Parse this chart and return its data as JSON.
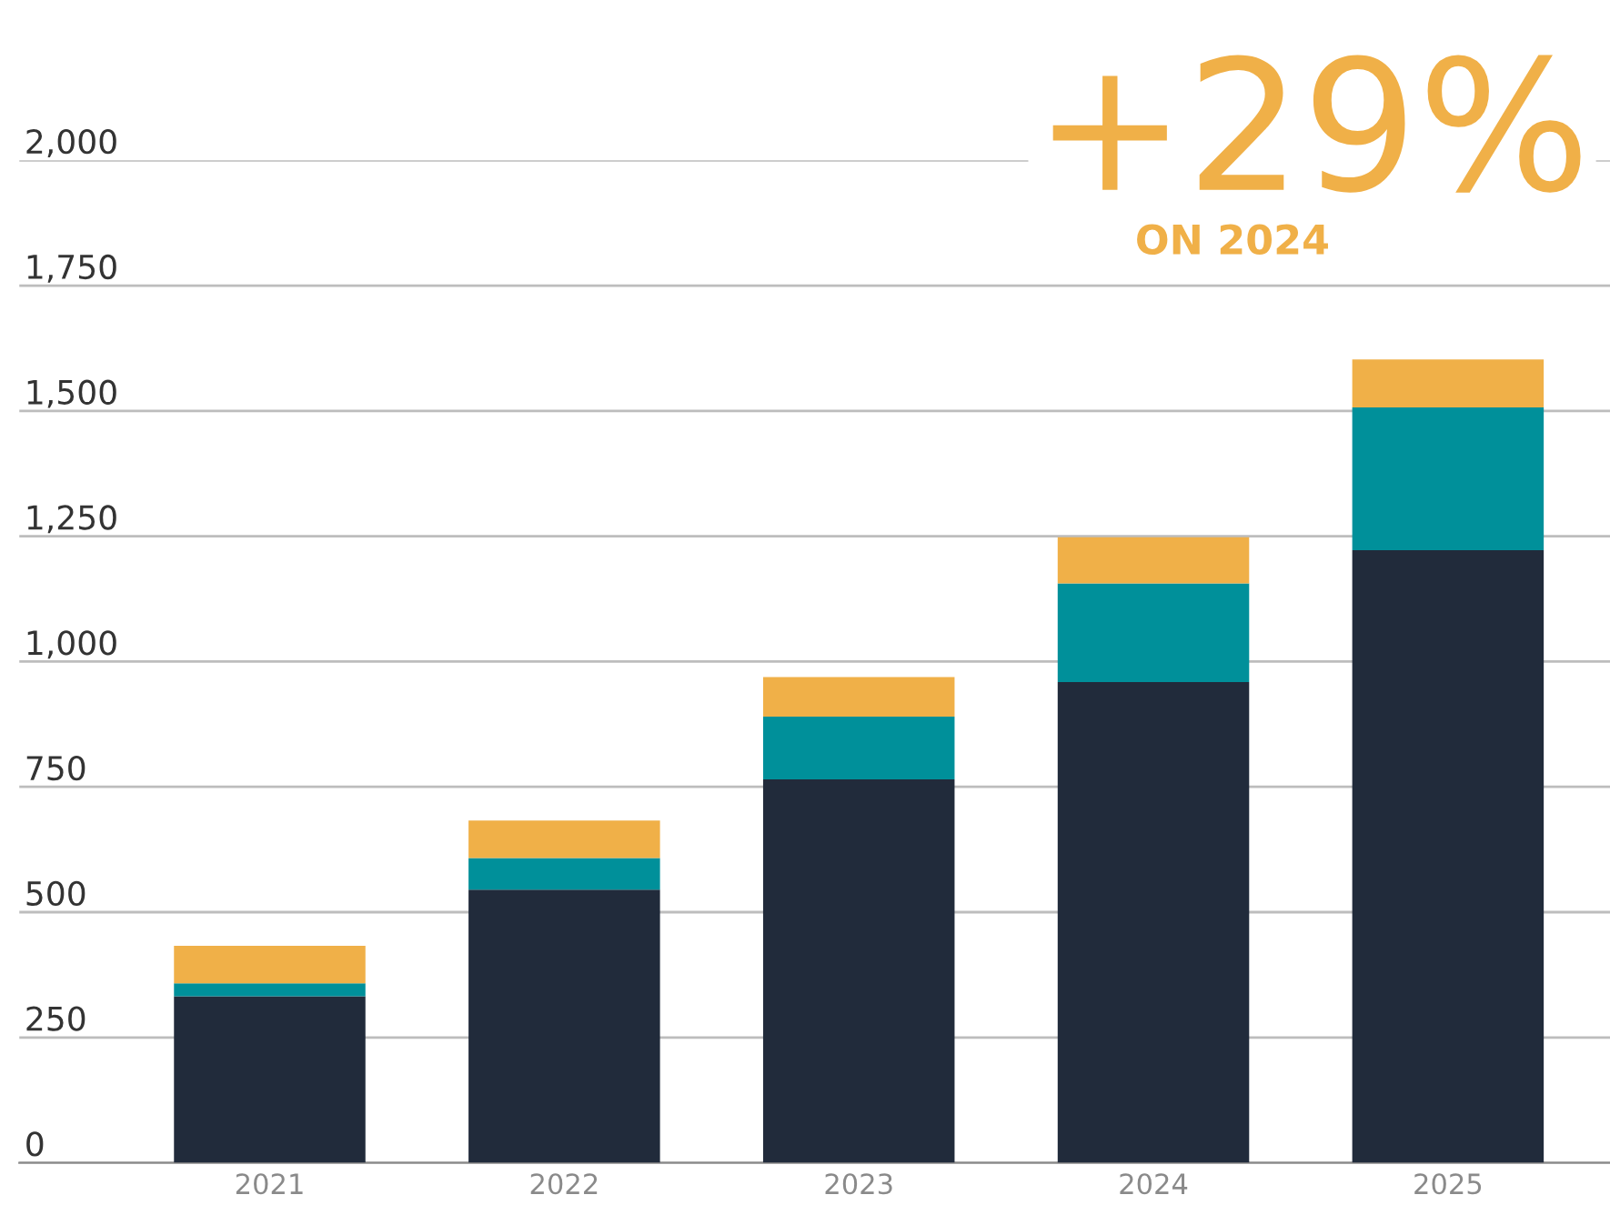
{
  "chart_data": {
    "type": "bar",
    "stacked": true,
    "categories": [
      "2021",
      "2022",
      "2023",
      "2024",
      "2025"
    ],
    "series": [
      {
        "color": "#212b3b",
        "values": [
          332,
          545,
          765,
          959,
          1222
        ]
      },
      {
        "color": "#00909a",
        "values": [
          26,
          63,
          125,
          197,
          285
        ]
      },
      {
        "color": "#f0b048",
        "values": [
          75,
          75,
          79,
          92,
          96
        ]
      }
    ],
    "ylim": [
      0,
      2000
    ],
    "yticks": [
      0,
      {
        "value": 250,
        "label": "250"
      },
      {
        "value": 500,
        "label": "500"
      },
      {
        "value": 750,
        "label": "750"
      },
      {
        "value": 1000,
        "label": "1,000"
      },
      {
        "value": 1250,
        "label": "1,250"
      },
      {
        "value": 1500,
        "label": "1,500"
      },
      {
        "value": 1750,
        "label": "1,750"
      },
      {
        "value": 2000,
        "label": "2,000"
      }
    ],
    "grid": "y",
    "legend": false,
    "annotations": [
      "+29%",
      "ON 2024"
    ]
  }
}
